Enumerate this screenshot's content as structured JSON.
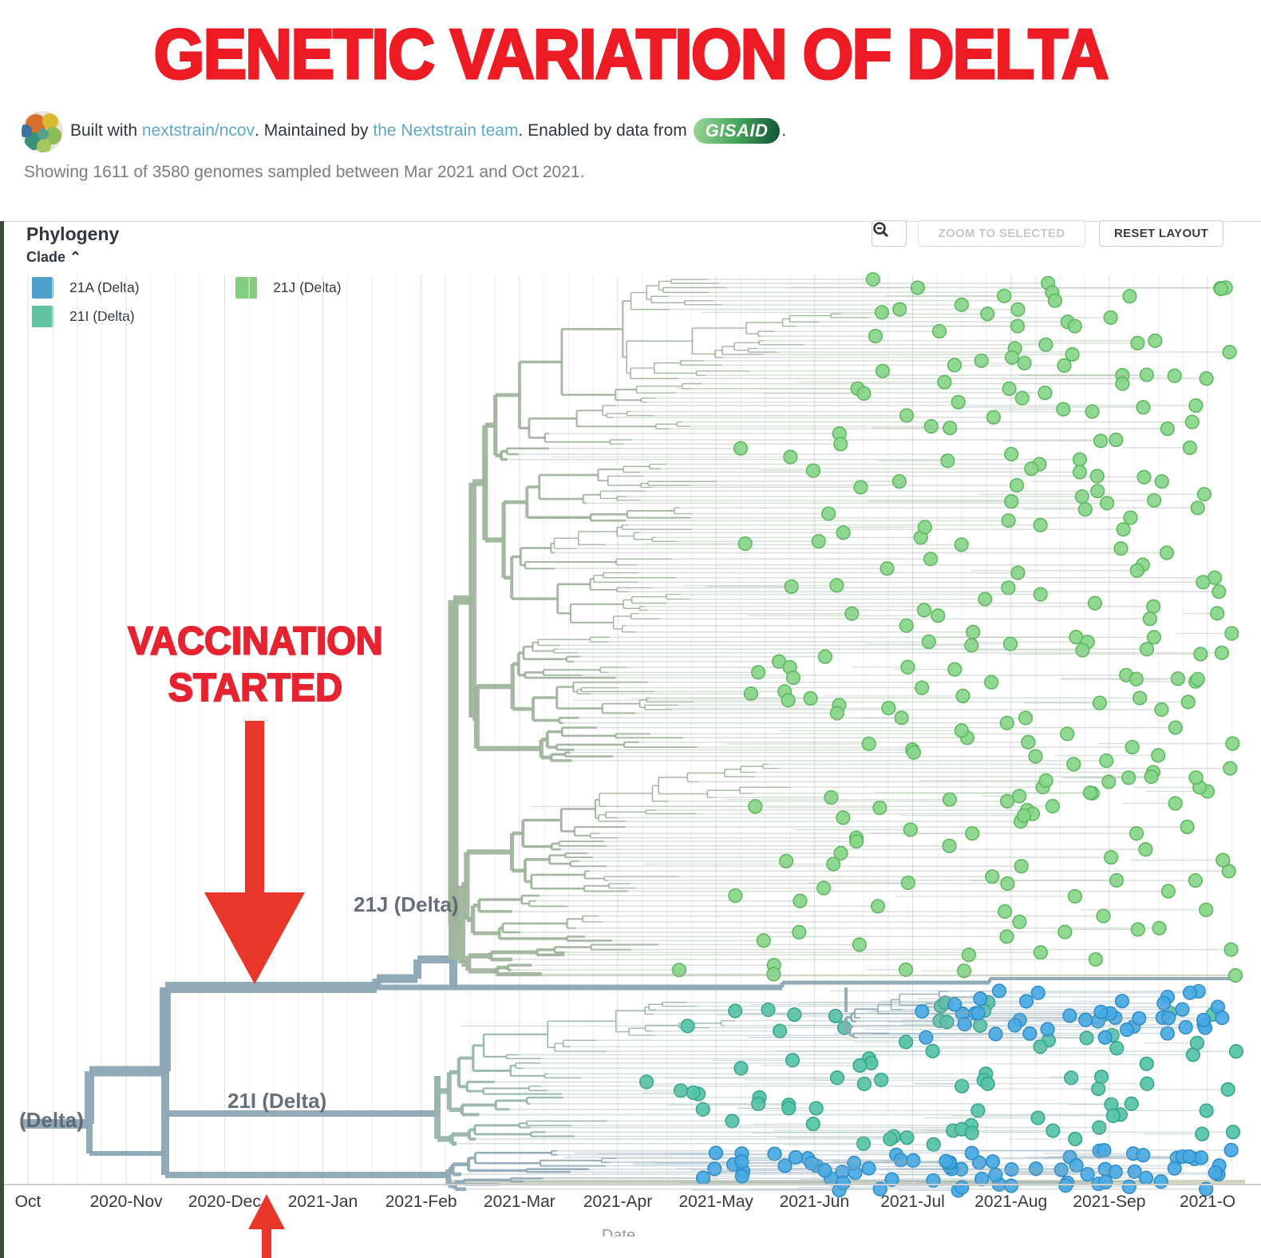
{
  "title": "GENETIC VARIATION OF DELTA",
  "attribution": {
    "built_with": "Built with ",
    "link1": "nextstrain/ncov",
    "maintained": ". Maintained by ",
    "link2": "the Nextstrain team",
    "enabled": ". Enabled by data from ",
    "gisaid": "GISAID",
    "period": "."
  },
  "subtitle": "Showing 1611 of 3580 genomes sampled between Mar 2021 and Oct 2021.",
  "panel": {
    "title": "Phylogeny",
    "zoom_to_selected": "ZOOM TO SELECTED",
    "reset_layout": "RESET LAYOUT",
    "clade_selector": "Clade"
  },
  "legend": [
    {
      "label": "21A (Delta)",
      "color": "#4fa0c8"
    },
    {
      "label": "21I (Delta)",
      "color": "#60c2a3"
    },
    {
      "label": "21J (Delta)",
      "color": "#83cf7e"
    }
  ],
  "annotations": {
    "vaccination_line1": "VACCINATION",
    "vaccination_line2": "STARTED",
    "arrow_color": "#e8372a"
  },
  "chart_data": {
    "type": "phylogenetic-tree",
    "description": "Nextstrain rectangular time-tree of SARS-CoV-2 Delta genomes, colored by clade",
    "genomes_shown": 1611,
    "genomes_total": 3580,
    "sample_window": "Mar 2021 - Oct 2021",
    "x_axis": {
      "label": "Date",
      "range": [
        "2020-Oct",
        "2021-Oct"
      ],
      "ticks": [
        "Oct",
        "2020-Nov",
        "2020-Dec",
        "2021-Jan",
        "2021-Feb",
        "2021-Mar",
        "2021-Apr",
        "2021-May",
        "2021-Jun",
        "2021-Jul",
        "2021-Aug",
        "2021-Sep",
        "2021-O"
      ]
    },
    "clades": [
      {
        "name": "21A (Delta)",
        "tip_color": "#47a9e4",
        "branch_color": "#8da7b6",
        "region": "trunk backbone plus lower bands, tips Jun-Oct 2021"
      },
      {
        "name": "21I (Delta)",
        "tip_color": "#55c3a6",
        "branch_color": "#95b3ab",
        "region": "middle-lower band, tips May-Oct 2021"
      },
      {
        "name": "21J (Delta)",
        "tip_color": "#88d68a",
        "branch_color": "#9db39a",
        "region": "large upper region, tips Apr-Oct 2021"
      }
    ],
    "tree_labels": {
      "j": "21J (Delta)",
      "i": "21I (Delta)",
      "root": "(Delta)"
    },
    "annotation": "VACCINATION STARTED arrows point to trunk near 2020-Dec / 2021-Jan"
  }
}
